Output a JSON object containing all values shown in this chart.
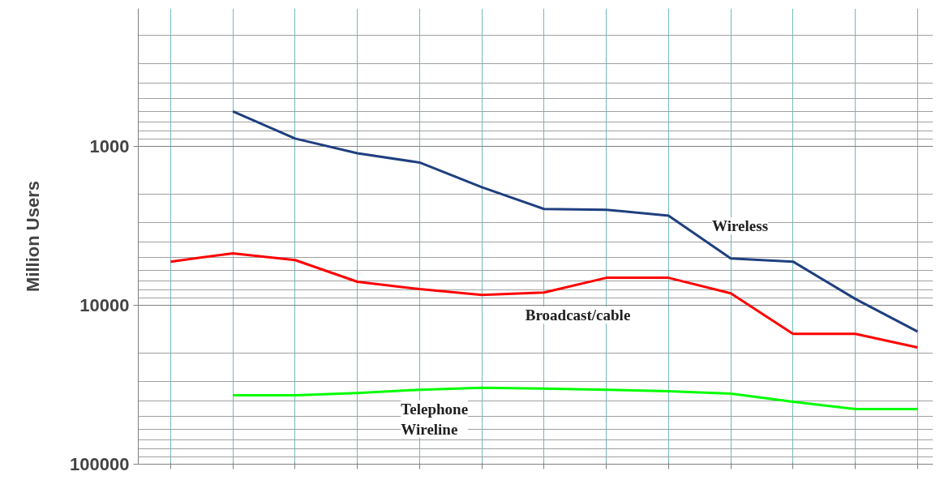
{
  "chart_data": {
    "type": "line",
    "ylabel": "Million Users",
    "log": true,
    "grid": true,
    "tick_labels": "y",
    "categories": [
      null,
      null,
      null,
      null,
      null,
      null,
      null,
      null,
      null,
      null,
      null,
      null,
      null
    ],
    "ylim": [
      100000,
      135
    ],
    "yticks": [
      1000,
      10000,
      100000
    ],
    "series": [
      {
        "name": "Wireless",
        "color": "#1f3f7f",
        "values": [
          null,
          600,
          890,
          1100,
          1260,
          1800,
          2470,
          2500,
          2720,
          5060,
          5300,
          9100,
          14600
        ]
      },
      {
        "name": "Broadcast/cable",
        "color": "#ff0000",
        "values": [
          5300,
          4700,
          5180,
          7100,
          7900,
          8600,
          8300,
          6700,
          6700,
          8400,
          15100,
          15100,
          18400
        ]
      },
      {
        "name": "Telephone\nWireline",
        "color": "#00ff00",
        "values": [
          null,
          36800,
          36800,
          35600,
          34000,
          33000,
          33400,
          34000,
          34700,
          36000,
          40400,
          45000,
          45000
        ]
      }
    ]
  }
}
